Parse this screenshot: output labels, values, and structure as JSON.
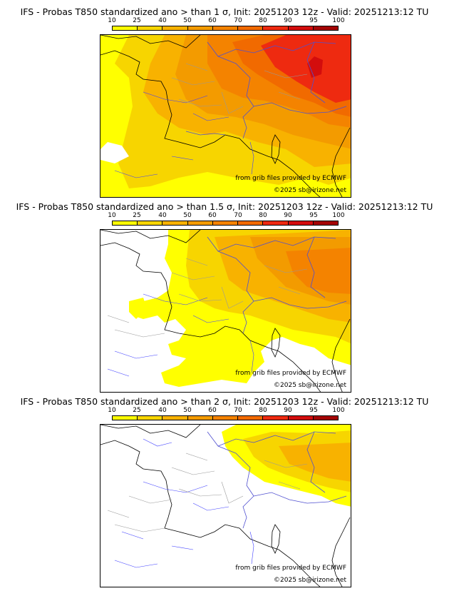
{
  "colors": [
    "#ffff00",
    "#f7d500",
    "#f8b200",
    "#f39b00",
    "#f48300",
    "#f16a00",
    "#ee2a10",
    "#d30d0d",
    "#a40404",
    "#6f0000"
  ],
  "panels": [
    {
      "title": "IFS - Probas T850  standardized ano > than 1 σ, Init: 20251203 12z - Valid: 20251213:12 TU",
      "scale_ticks": [
        "10",
        "25",
        "40",
        "50",
        "60",
        "70",
        "80",
        "90",
        "95",
        "100"
      ],
      "credit_grib": "from grib files provided by ECMWF",
      "credit_copyright": "©2025 sb@irizone.net",
      "threshold_sigma": 1
    },
    {
      "title": "IFS - Probas T850  standardized ano > than 1.5 σ, Init: 20251203 12z - Valid: 20251213:12 TU",
      "scale_ticks": [
        "10",
        "25",
        "40",
        "50",
        "60",
        "70",
        "80",
        "90",
        "95",
        "100"
      ],
      "credit_grib": "from grib files provided by ECMWF",
      "credit_copyright": "©2025 sb@irizone.net",
      "threshold_sigma": 1.5
    },
    {
      "title": "IFS - Probas T850  standardized ano > than 2 σ, Init: 20251203 12z - Valid: 20251213:12 TU",
      "scale_ticks": [
        "10",
        "25",
        "40",
        "50",
        "60",
        "70",
        "80",
        "90",
        "95",
        "100"
      ],
      "credit_grib": "from grib files provided by ECMWF",
      "credit_copyright": "©2025 sb@irizone.net",
      "threshold_sigma": 2
    }
  ]
}
